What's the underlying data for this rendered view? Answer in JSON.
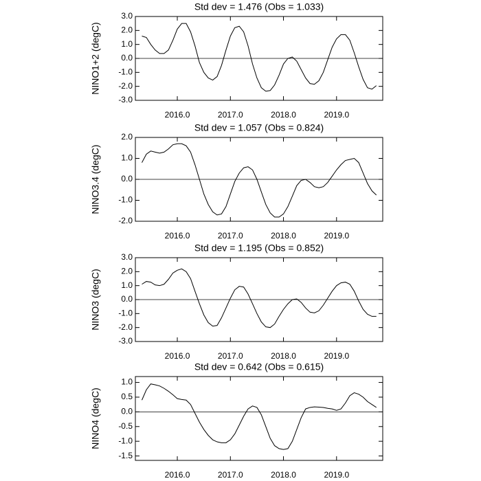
{
  "chart_data": [
    {
      "type": "line",
      "title": "Std dev = 1.476 (Obs = 1.033)",
      "y_label": "NINO1+2 (degC)",
      "color": "#000000",
      "x": [
        2015.333,
        2015.417,
        2015.5,
        2015.583,
        2015.667,
        2015.75,
        2015.833,
        2015.917,
        2016,
        2016.083,
        2016.167,
        2016.25,
        2016.333,
        2016.417,
        2016.5,
        2016.583,
        2016.667,
        2016.75,
        2016.833,
        2016.917,
        2017,
        2017.083,
        2017.167,
        2017.25,
        2017.333,
        2017.417,
        2017.5,
        2017.583,
        2017.667,
        2017.75,
        2017.833,
        2017.917,
        2018,
        2018.083,
        2018.167,
        2018.25,
        2018.333,
        2018.417,
        2018.5,
        2018.583,
        2018.667,
        2018.75,
        2018.833,
        2018.917,
        2019,
        2019.083,
        2019.167,
        2019.25,
        2019.333,
        2019.417,
        2019.5,
        2019.583,
        2019.667,
        2019.75
      ],
      "values": [
        1.6,
        1.5,
        1.0,
        0.6,
        0.35,
        0.35,
        0.6,
        1.3,
        2.1,
        2.5,
        2.5,
        1.9,
        0.9,
        -0.3,
        -1.0,
        -1.4,
        -1.55,
        -1.3,
        -0.5,
        0.6,
        1.6,
        2.2,
        2.3,
        1.9,
        0.9,
        -0.4,
        -1.4,
        -2.1,
        -2.35,
        -2.3,
        -1.9,
        -1.2,
        -0.4,
        0.0,
        0.1,
        -0.2,
        -0.8,
        -1.4,
        -1.8,
        -1.85,
        -1.6,
        -1.0,
        -0.1,
        0.8,
        1.4,
        1.7,
        1.7,
        1.3,
        0.4,
        -0.6,
        -1.5,
        -2.1,
        -2.2,
        -1.95
      ],
      "xlim": [
        2015.21,
        2019.87
      ],
      "ylim": [
        -3,
        3
      ],
      "xticks": [
        {
          "value": 2016,
          "label": "2016.0"
        },
        {
          "value": 2017,
          "label": "2017.0"
        },
        {
          "value": 2018,
          "label": "2018.0"
        },
        {
          "value": 2019,
          "label": "2019.0"
        }
      ],
      "yticks": [
        {
          "value": -3,
          "label": "-3.0"
        },
        {
          "value": -2,
          "label": "-2.0"
        },
        {
          "value": -1,
          "label": "-1.0"
        },
        {
          "value": 0,
          "label": "0.0"
        },
        {
          "value": 1,
          "label": "1.0"
        },
        {
          "value": 2,
          "label": "2.0"
        },
        {
          "value": 3,
          "label": "3.0"
        }
      ],
      "reference_line": 0
    },
    {
      "type": "line",
      "title": "Std dev = 1.057 (Obs = 0.824)",
      "y_label": "NINO3.4 (degC)",
      "color": "#000000",
      "x": [
        2015.333,
        2015.417,
        2015.5,
        2015.583,
        2015.667,
        2015.75,
        2015.833,
        2015.917,
        2016,
        2016.083,
        2016.167,
        2016.25,
        2016.333,
        2016.417,
        2016.5,
        2016.583,
        2016.667,
        2016.75,
        2016.833,
        2016.917,
        2017,
        2017.083,
        2017.167,
        2017.25,
        2017.333,
        2017.417,
        2017.5,
        2017.583,
        2017.667,
        2017.75,
        2017.833,
        2017.917,
        2018,
        2018.083,
        2018.167,
        2018.25,
        2018.333,
        2018.417,
        2018.5,
        2018.583,
        2018.667,
        2018.75,
        2018.833,
        2018.917,
        2019,
        2019.083,
        2019.167,
        2019.25,
        2019.333,
        2019.417,
        2019.5,
        2019.583,
        2019.667,
        2019.75
      ],
      "values": [
        0.8,
        1.2,
        1.35,
        1.3,
        1.25,
        1.3,
        1.45,
        1.65,
        1.7,
        1.7,
        1.6,
        1.3,
        0.7,
        0.0,
        -0.7,
        -1.2,
        -1.55,
        -1.7,
        -1.65,
        -1.3,
        -0.7,
        -0.1,
        0.3,
        0.55,
        0.6,
        0.45,
        0.0,
        -0.6,
        -1.2,
        -1.6,
        -1.8,
        -1.8,
        -1.65,
        -1.3,
        -0.8,
        -0.3,
        -0.05,
        0.0,
        -0.15,
        -0.35,
        -0.4,
        -0.35,
        -0.15,
        0.15,
        0.45,
        0.7,
        0.9,
        0.95,
        1.0,
        0.8,
        0.3,
        -0.2,
        -0.55,
        -0.75
      ],
      "xlim": [
        2015.21,
        2019.87
      ],
      "ylim": [
        -2,
        2
      ],
      "xticks": [
        {
          "value": 2016,
          "label": "2016.0"
        },
        {
          "value": 2017,
          "label": "2017.0"
        },
        {
          "value": 2018,
          "label": "2018.0"
        },
        {
          "value": 2019,
          "label": "2019.0"
        }
      ],
      "yticks": [
        {
          "value": -2,
          "label": "-2.0"
        },
        {
          "value": -1,
          "label": "-1.0"
        },
        {
          "value": 0,
          "label": "0.0"
        },
        {
          "value": 1,
          "label": "1.0"
        },
        {
          "value": 2,
          "label": "2.0"
        }
      ],
      "reference_line": 0
    },
    {
      "type": "line",
      "title": "Std dev = 1.195 (Obs = 0.852)",
      "y_label": "NINO3 (degC)",
      "color": "#000000",
      "x": [
        2015.333,
        2015.417,
        2015.5,
        2015.583,
        2015.667,
        2015.75,
        2015.833,
        2015.917,
        2016,
        2016.083,
        2016.167,
        2016.25,
        2016.333,
        2016.417,
        2016.5,
        2016.583,
        2016.667,
        2016.75,
        2016.833,
        2016.917,
        2017,
        2017.083,
        2017.167,
        2017.25,
        2017.333,
        2017.417,
        2017.5,
        2017.583,
        2017.667,
        2017.75,
        2017.833,
        2017.917,
        2018,
        2018.083,
        2018.167,
        2018.25,
        2018.333,
        2018.417,
        2018.5,
        2018.583,
        2018.667,
        2018.75,
        2018.833,
        2018.917,
        2019,
        2019.083,
        2019.167,
        2019.25,
        2019.333,
        2019.417,
        2019.5,
        2019.583,
        2019.667,
        2019.75
      ],
      "values": [
        1.1,
        1.3,
        1.25,
        1.05,
        1.0,
        1.1,
        1.45,
        1.9,
        2.1,
        2.2,
        2.0,
        1.5,
        0.6,
        -0.3,
        -1.1,
        -1.65,
        -1.9,
        -1.85,
        -1.3,
        -0.6,
        0.1,
        0.7,
        0.95,
        0.9,
        0.4,
        -0.3,
        -1.0,
        -1.6,
        -1.95,
        -2.0,
        -1.75,
        -1.2,
        -0.7,
        -0.3,
        0.0,
        0.05,
        -0.2,
        -0.6,
        -0.9,
        -0.95,
        -0.8,
        -0.4,
        0.1,
        0.6,
        1.0,
        1.2,
        1.25,
        1.1,
        0.6,
        -0.1,
        -0.7,
        -1.05,
        -1.2,
        -1.2
      ],
      "xlim": [
        2015.21,
        2019.87
      ],
      "ylim": [
        -3,
        3
      ],
      "xticks": [
        {
          "value": 2016,
          "label": "2016.0"
        },
        {
          "value": 2017,
          "label": "2017.0"
        },
        {
          "value": 2018,
          "label": "2018.0"
        },
        {
          "value": 2019,
          "label": "2019.0"
        }
      ],
      "yticks": [
        {
          "value": -3,
          "label": "-3.0"
        },
        {
          "value": -2,
          "label": "-2.0"
        },
        {
          "value": -1,
          "label": "-1.0"
        },
        {
          "value": 0,
          "label": "0.0"
        },
        {
          "value": 1,
          "label": "1.0"
        },
        {
          "value": 2,
          "label": "2.0"
        },
        {
          "value": 3,
          "label": "3.0"
        }
      ],
      "reference_line": 0
    },
    {
      "type": "line",
      "title": "Std dev = 0.642 (Obs = 0.615)",
      "y_label": "NINO4 (degC)",
      "color": "#000000",
      "x": [
        2015.333,
        2015.417,
        2015.5,
        2015.583,
        2015.667,
        2015.75,
        2015.833,
        2015.917,
        2016,
        2016.083,
        2016.167,
        2016.25,
        2016.333,
        2016.417,
        2016.5,
        2016.583,
        2016.667,
        2016.75,
        2016.833,
        2016.917,
        2017,
        2017.083,
        2017.167,
        2017.25,
        2017.333,
        2017.417,
        2017.5,
        2017.583,
        2017.667,
        2017.75,
        2017.833,
        2017.917,
        2018,
        2018.083,
        2018.167,
        2018.25,
        2018.333,
        2018.417,
        2018.5,
        2018.583,
        2018.667,
        2018.75,
        2018.833,
        2018.917,
        2019,
        2019.083,
        2019.167,
        2019.25,
        2019.333,
        2019.417,
        2019.5,
        2019.583,
        2019.667,
        2019.75
      ],
      "values": [
        0.4,
        0.75,
        0.95,
        0.92,
        0.88,
        0.8,
        0.7,
        0.58,
        0.45,
        0.42,
        0.4,
        0.25,
        -0.05,
        -0.35,
        -0.6,
        -0.8,
        -0.95,
        -1.02,
        -1.05,
        -1.05,
        -0.95,
        -0.75,
        -0.45,
        -0.15,
        0.1,
        0.2,
        0.15,
        -0.1,
        -0.5,
        -0.9,
        -1.15,
        -1.25,
        -1.28,
        -1.25,
        -1.0,
        -0.6,
        -0.2,
        0.1,
        0.15,
        0.17,
        0.16,
        0.15,
        0.12,
        0.1,
        0.05,
        0.1,
        0.3,
        0.55,
        0.65,
        0.6,
        0.5,
        0.35,
        0.25,
        0.15
      ],
      "xlim": [
        2015.21,
        2019.87
      ],
      "ylim": [
        -1.65,
        1.2
      ],
      "xticks": [
        {
          "value": 2016,
          "label": "2016.0"
        },
        {
          "value": 2017,
          "label": "2017.0"
        },
        {
          "value": 2018,
          "label": "2018.0"
        },
        {
          "value": 2019,
          "label": "2019.0"
        }
      ],
      "yticks": [
        {
          "value": -1.5,
          "label": "-1.5"
        },
        {
          "value": -1,
          "label": "-1.0"
        },
        {
          "value": -0.5,
          "label": "-0.5"
        },
        {
          "value": 0,
          "label": "0.0"
        },
        {
          "value": 0.5,
          "label": "0.5"
        },
        {
          "value": 1,
          "label": "1.0"
        }
      ],
      "reference_line": 0
    }
  ]
}
